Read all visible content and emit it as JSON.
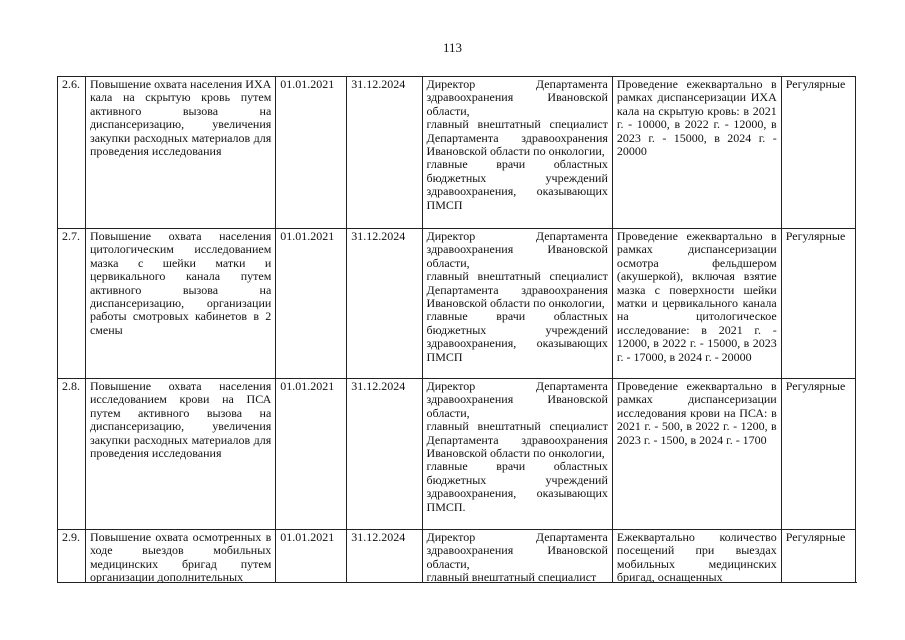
{
  "page_number": "113",
  "rows": [
    {
      "num": "2.6.",
      "description": "Повышение охвата населения ИХА кала на скрытую кровь путем активного вызова на диспансеризацию, увеличения закупки расходных материалов для проведения исследования",
      "start": "01.01.2021",
      "end": "31.12.2024",
      "responsible": [
        "Директор Департамента здравоохранения Ивановской области,",
        "главный внештатный специалист Департамента здравоохранения Ивановской области по онкологии,",
        "главные врачи областных бюджетных учреждений здравоохранения, оказывающих ПМСП"
      ],
      "result": "Проведение ежеквартально в рамках диспансеризации ИХА кала на скрытую кровь: в 2021 г. - 10000, в 2022 г. - 12000, в 2023 г. - 15000, в 2024 г. - 20000",
      "type": "Регулярные"
    },
    {
      "num": "2.7.",
      "description": "Повышение охвата населения цитологическим исследованием мазка с шейки матки и цервикального канала путем активного вызова на диспансеризацию, организации работы смотровых кабинетов в 2 смены",
      "start": "01.01.2021",
      "end": "31.12.2024",
      "responsible": [
        "Директор Департамента здравоохранения Ивановской области,",
        "главный внештатный специалист Департамента здравоохранения Ивановской области по онкологии,",
        "главные врачи областных бюджетных учреждений здравоохранения, оказывающих ПМСП"
      ],
      "result": "Проведение ежеквартально в рамках диспансеризации осмотра фельдшером (акушеркой), включая взятие мазка с поверхности шейки матки и цервикального канала на цитологическое исследование: в 2021 г. - 12000, в 2022 г. - 15000, в 2023 г. - 17000, в 2024 г. - 20000",
      "type": "Регулярные"
    },
    {
      "num": "2.8.",
      "description": "Повышение охвата населения исследованием крови на ПСА путем активного вызова на диспансеризацию, увеличения закупки расходных материалов для проведения исследования",
      "start": "01.01.2021",
      "end": "31.12.2024",
      "responsible": [
        "Директор Департамента здравоохранения Ивановской области,",
        "главный внештатный специалист Департамента здравоохранения Ивановской области по онкологии,",
        "главные врачи областных бюджетных учреждений здравоохранения, оказывающих ПМСП."
      ],
      "result": "Проведение ежеквартально в рамках диспансеризации исследования крови на ПСА: в 2021 г. - 500, в 2022 г. - 1200, в 2023 г. - 1500, в 2024 г. - 1700",
      "type": "Регулярные"
    },
    {
      "num": "2.9.",
      "description": "Повышение охвата осмотренных в ходе выездов мобильных медицинских бригад путем организации дополнительных",
      "start": "01.01.2021",
      "end": "31.12.2024",
      "responsible": [
        "Директор Департамента здравоохранения Ивановской области,",
        "главный внештатный специалист"
      ],
      "result": "Ежеквартально количество посещений при выездах мобильных медицинских бригад, оснащенных",
      "type": "Регулярные"
    }
  ]
}
